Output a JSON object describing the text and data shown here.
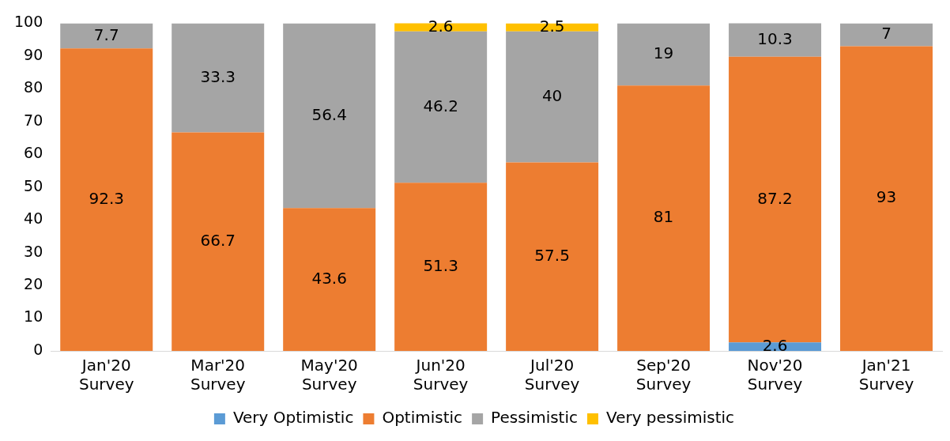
{
  "chart_data": {
    "type": "bar",
    "stacked": true,
    "categories": [
      "Jan'20 Survey",
      "Mar'20 Survey",
      "May'20 Survey",
      "Jun'20 Survey",
      "Jul'20 Survey",
      "Sep'20 Survey",
      "Nov'20 Survey",
      "Jan'21 Survey"
    ],
    "series": [
      {
        "name": "Very Optimistic",
        "color": "#5b9bd5",
        "values": [
          null,
          null,
          null,
          null,
          null,
          null,
          2.6,
          null
        ]
      },
      {
        "name": "Optimistic",
        "color": "#ed7d31",
        "values": [
          92.3,
          66.7,
          43.6,
          51.3,
          57.5,
          81,
          87.2,
          93
        ]
      },
      {
        "name": "Pessimistic",
        "color": "#a5a5a5",
        "values": [
          7.7,
          33.3,
          56.4,
          46.2,
          40,
          19,
          10.3,
          7
        ]
      },
      {
        "name": "Very pessimistic",
        "color": "#ffc000",
        "values": [
          null,
          null,
          null,
          2.6,
          2.5,
          null,
          null,
          null
        ]
      }
    ],
    "ylim": [
      0,
      100
    ],
    "yticks": [
      0,
      10,
      20,
      30,
      40,
      50,
      60,
      70,
      80,
      90,
      100
    ],
    "grid": false,
    "legend": "bottom",
    "data_labels": true
  }
}
